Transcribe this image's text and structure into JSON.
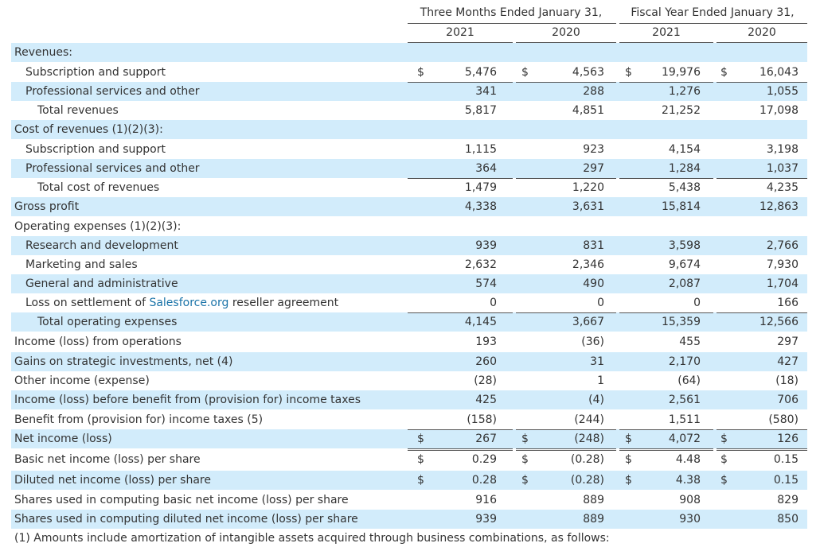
{
  "header": {
    "group_three_months": "Three Months Ended January 31,",
    "group_fiscal_year": "Fiscal Year Ended January 31,",
    "years": [
      "2021",
      "2020",
      "2021",
      "2020"
    ]
  },
  "rows": [
    {
      "label": "Revenues:",
      "indent": 0,
      "shade": true,
      "cells": [
        "",
        "",
        "",
        ""
      ],
      "dollar": false
    },
    {
      "label": "Subscription and support",
      "indent": 1,
      "shade": false,
      "cells": [
        "5,476",
        "4,563",
        "19,976",
        "16,043"
      ],
      "dollar": true
    },
    {
      "label": "Professional services and other",
      "indent": 1,
      "shade": true,
      "cells": [
        "341",
        "288",
        "1,276",
        "1,055"
      ],
      "dollar": false
    },
    {
      "label": "Total revenues",
      "indent": 2,
      "shade": false,
      "cells": [
        "5,817",
        "4,851",
        "21,252",
        "17,098"
      ],
      "dollar": false
    },
    {
      "label": "Cost of revenues (1)(2)(3):",
      "indent": 0,
      "shade": true,
      "cells": [
        "",
        "",
        "",
        ""
      ],
      "dollar": false
    },
    {
      "label": "Subscription and support",
      "indent": 1,
      "shade": false,
      "cells": [
        "1,115",
        "923",
        "4,154",
        "3,198"
      ],
      "dollar": false
    },
    {
      "label": "Professional services and other",
      "indent": 1,
      "shade": true,
      "cells": [
        "364",
        "297",
        "1,284",
        "1,037"
      ],
      "dollar": false
    },
    {
      "label": "Total cost of revenues",
      "indent": 2,
      "shade": false,
      "cells": [
        "1,479",
        "1,220",
        "5,438",
        "4,235"
      ],
      "dollar": false
    },
    {
      "label": "Gross profit",
      "indent": 0,
      "shade": true,
      "cells": [
        "4,338",
        "3,631",
        "15,814",
        "12,863"
      ],
      "dollar": false
    },
    {
      "label": "Operating expenses (1)(2)(3):",
      "indent": 0,
      "shade": false,
      "cells": [
        "",
        "",
        "",
        ""
      ],
      "dollar": false
    },
    {
      "label": "Research and development",
      "indent": 1,
      "shade": true,
      "cells": [
        "939",
        "831",
        "3,598",
        "2,766"
      ],
      "dollar": false
    },
    {
      "label": "Marketing and sales",
      "indent": 1,
      "shade": false,
      "cells": [
        "2,632",
        "2,346",
        "9,674",
        "7,930"
      ],
      "dollar": false
    },
    {
      "label": "General and administrative",
      "indent": 1,
      "shade": true,
      "cells": [
        "574",
        "490",
        "2,087",
        "1,704"
      ],
      "dollar": false
    },
    {
      "label_pre": "Loss on settlement of ",
      "label_link": "Salesforce.org",
      "label_post": " reseller agreement",
      "indent": 1,
      "shade": false,
      "cells": [
        "0",
        "0",
        "0",
        "166"
      ],
      "dollar": false
    },
    {
      "label": "Total operating expenses",
      "indent": 2,
      "shade": true,
      "cells": [
        "4,145",
        "3,667",
        "15,359",
        "12,566"
      ],
      "dollar": false
    },
    {
      "label": "Income (loss) from operations",
      "indent": 0,
      "shade": false,
      "cells": [
        "193",
        "(36)",
        "455",
        "297"
      ],
      "dollar": false
    },
    {
      "label": "Gains on strategic investments, net (4)",
      "indent": 0,
      "shade": true,
      "cells": [
        "260",
        "31",
        "2,170",
        "427"
      ],
      "dollar": false
    },
    {
      "label": "Other income (expense)",
      "indent": 0,
      "shade": false,
      "cells": [
        "(28)",
        "1",
        "(64)",
        "(18)"
      ],
      "dollar": false
    },
    {
      "label": "Income (loss) before benefit from (provision for) income taxes",
      "indent": 0,
      "shade": true,
      "cells": [
        "425",
        "(4)",
        "2,561",
        "706"
      ],
      "dollar": false
    },
    {
      "label": "Benefit from (provision for) income taxes (5)",
      "indent": 0,
      "shade": false,
      "cells": [
        "(158)",
        "(244)",
        "1,511",
        "(580)"
      ],
      "dollar": false
    },
    {
      "label": "Net income (loss)",
      "indent": 0,
      "shade": true,
      "cells": [
        "267",
        "(248)",
        "4,072",
        "126"
      ],
      "dollar": true
    },
    {
      "label": "Basic net income (loss) per share",
      "indent": 0,
      "shade": false,
      "cells": [
        "0.29",
        "(0.28)",
        "4.48",
        "0.15"
      ],
      "dollar": true
    },
    {
      "label": "Diluted net income (loss) per share",
      "indent": 0,
      "shade": true,
      "cells": [
        "0.28",
        "(0.28)",
        "4.38",
        "0.15"
      ],
      "dollar": true
    },
    {
      "label": "Shares used in computing basic net income (loss) per share",
      "indent": 0,
      "shade": false,
      "cells": [
        "916",
        "889",
        "908",
        "829"
      ],
      "dollar": false
    },
    {
      "label": "Shares used in computing diluted net income (loss) per share",
      "indent": 0,
      "shade": true,
      "cells": [
        "939",
        "889",
        "930",
        "850"
      ],
      "dollar": false
    }
  ],
  "dollar_sign": "$",
  "footnote": "(1) Amounts include amortization of intangible assets acquired through business combinations, as follows:"
}
